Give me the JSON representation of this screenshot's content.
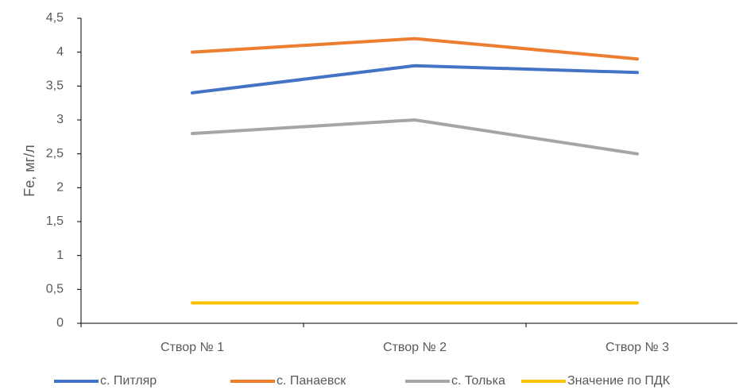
{
  "chart_data": {
    "type": "line",
    "y_label": "Fe, мг/л",
    "categories": [
      "Створ № 1",
      "Створ № 2",
      "Створ № 3"
    ],
    "series": [
      {
        "name": "с. Питляр",
        "color": "#4472c4",
        "values": [
          3.4,
          3.8,
          3.7
        ]
      },
      {
        "name": "с. Панаевск",
        "color": "#ed7d31",
        "values": [
          4.0,
          4.2,
          3.9
        ]
      },
      {
        "name": "с. Толька",
        "color": "#a5a5a5",
        "values": [
          2.8,
          3.0,
          2.5
        ]
      },
      {
        "name": "Значение по ПДК",
        "color": "#ffc000",
        "values": [
          0.3,
          0.3,
          0.3
        ]
      }
    ],
    "ylim": [
      0,
      4.5
    ],
    "yticks": [
      0,
      {
        "value": 0.5,
        "label": "0,5"
      },
      1,
      {
        "value": 1.5,
        "label": "1,5"
      },
      2,
      {
        "value": 2.5,
        "label": "2,5"
      },
      3,
      {
        "value": 3.5,
        "label": "3,5"
      },
      4,
      {
        "value": 4.5,
        "label": "4,5"
      }
    ],
    "grid": false,
    "legend": "bottom"
  }
}
